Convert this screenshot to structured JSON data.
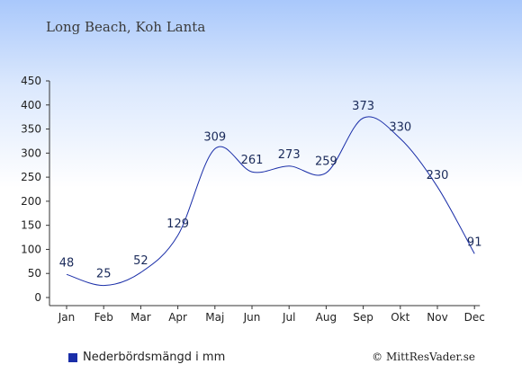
{
  "title": "Long Beach, Koh Lanta",
  "legend": {
    "label": "Nederbördsmängd i mm",
    "color": "#1a2ea8"
  },
  "credit": "© MittResVader.se",
  "colors": {
    "line": "#1a2ea8",
    "axis": "#333333"
  },
  "chart_data": {
    "type": "line",
    "categories": [
      "Jan",
      "Feb",
      "Mar",
      "Apr",
      "Maj",
      "Jun",
      "Jul",
      "Aug",
      "Sep",
      "Okt",
      "Nov",
      "Dec"
    ],
    "series": [
      {
        "name": "Nederbördsmängd i mm",
        "values": [
          48,
          25,
          52,
          129,
          309,
          261,
          273,
          259,
          373,
          330,
          230,
          91
        ]
      }
    ],
    "ylim": [
      0,
      450
    ],
    "yticks": [
      0,
      50,
      100,
      150,
      200,
      250,
      300,
      350,
      400,
      450
    ],
    "grid": false,
    "legend_position": "bottom-left"
  }
}
